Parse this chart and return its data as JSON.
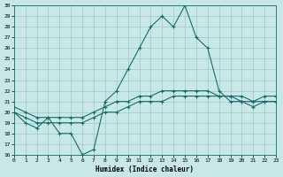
{
  "xlabel": "Humidex (Indice chaleur)",
  "background_color": "#c8e8e8",
  "grid_color": "#a0c8c8",
  "line_color": "#1a6b6b",
  "ylim": [
    16,
    30
  ],
  "xlim": [
    0,
    23
  ],
  "yticks": [
    16,
    17,
    18,
    19,
    20,
    21,
    22,
    23,
    24,
    25,
    26,
    27,
    28,
    29,
    30
  ],
  "xticks": [
    0,
    1,
    2,
    3,
    4,
    5,
    6,
    7,
    8,
    9,
    10,
    11,
    12,
    13,
    14,
    15,
    16,
    17,
    18,
    19,
    20,
    21,
    22,
    23
  ],
  "line1": [
    20,
    19,
    18.5,
    19.5,
    18,
    18,
    16,
    16.5,
    21,
    22,
    24,
    26,
    28,
    29,
    28,
    30,
    27,
    26,
    22,
    21,
    21,
    20.5,
    21,
    21
  ],
  "line2": [
    20.5,
    20,
    19.5,
    19.5,
    19.5,
    19.5,
    19.5,
    20,
    20.5,
    21,
    21,
    21.5,
    21.5,
    22,
    22,
    22,
    22,
    22,
    21.5,
    21.5,
    21,
    21,
    21,
    21
  ],
  "line3": [
    20,
    19.5,
    19,
    19,
    19,
    19,
    19,
    19.5,
    20,
    20,
    20.5,
    21,
    21,
    21,
    21.5,
    21.5,
    21.5,
    21.5,
    21.5,
    21.5,
    21.5,
    21,
    21.5,
    21.5
  ]
}
